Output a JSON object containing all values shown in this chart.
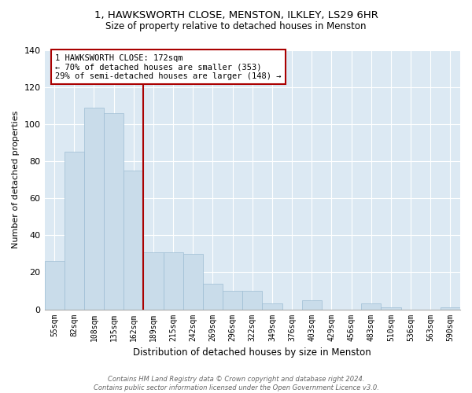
{
  "title": "1, HAWKSWORTH CLOSE, MENSTON, ILKLEY, LS29 6HR",
  "subtitle": "Size of property relative to detached houses in Menston",
  "xlabel": "Distribution of detached houses by size in Menston",
  "ylabel": "Number of detached properties",
  "bar_labels": [
    "55sqm",
    "82sqm",
    "108sqm",
    "135sqm",
    "162sqm",
    "189sqm",
    "215sqm",
    "242sqm",
    "269sqm",
    "296sqm",
    "322sqm",
    "349sqm",
    "376sqm",
    "403sqm",
    "429sqm",
    "456sqm",
    "483sqm",
    "510sqm",
    "536sqm",
    "563sqm",
    "590sqm"
  ],
  "bar_values": [
    26,
    85,
    109,
    106,
    75,
    31,
    31,
    30,
    14,
    10,
    10,
    3,
    0,
    5,
    0,
    0,
    3,
    1,
    0,
    0,
    1
  ],
  "bar_color": "#c9dcea",
  "bar_edge_color": "#9dbdd4",
  "vline_color": "#aa0000",
  "vline_position": 4.5,
  "annotation_text": "1 HAWKSWORTH CLOSE: 172sqm\n← 70% of detached houses are smaller (353)\n29% of semi-detached houses are larger (148) →",
  "annotation_box_facecolor": "#ffffff",
  "annotation_box_edgecolor": "#aa0000",
  "ylim": [
    0,
    140
  ],
  "yticks": [
    0,
    20,
    40,
    60,
    80,
    100,
    120,
    140
  ],
  "plot_bg_color": "#dce9f3",
  "fig_bg_color": "#ffffff",
  "grid_color": "#ffffff",
  "footer_text": "Contains HM Land Registry data © Crown copyright and database right 2024.\nContains public sector information licensed under the Open Government Licence v3.0."
}
